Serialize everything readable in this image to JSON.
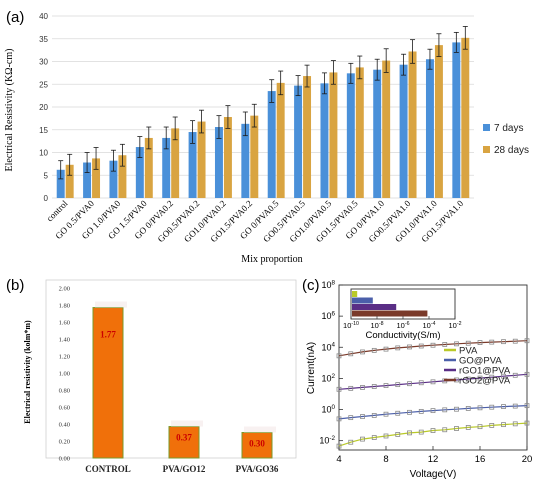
{
  "chart_data": [
    {
      "type": "bar",
      "panel_label": "(a)",
      "title": "",
      "xlabel": "Mix proportion",
      "ylabel": "Electrical Resistivity (KΩ-cm)",
      "ylim": [
        0,
        40
      ],
      "yticks": [
        0,
        5,
        10,
        15,
        20,
        25,
        30,
        35,
        40
      ],
      "grid": true,
      "legend_position": "right",
      "colors": {
        "7 days": "#4a90d9",
        "28 days": "#d9a441",
        "error": "#1a1a1a",
        "grid": "#d9d9d9"
      },
      "categories": [
        "control",
        "GO 0.5/PVA0",
        "GO 1.0/PVA0",
        "GO 1.5/PVA0",
        "GO 0/PVA0.2",
        "GO0.5/PVA0.2",
        "GO1.0/PVA0.2",
        "GO1.5/PVA0.2",
        "GO 0/PVA0.5",
        "GO0.5/PVA0.5",
        "GO1.0/PVA0.5",
        "GO1.5/PVA0.5",
        "GO 0/PVA1.0",
        "GO0.5/PVA1.0",
        "GO1.0/PVA1.0",
        "GO1.5/PVA1.0"
      ],
      "series": [
        {
          "name": "7 days",
          "values": [
            6.2,
            7.8,
            8.2,
            11.2,
            13.2,
            14.5,
            15.6,
            16.3,
            23.5,
            24.7,
            25.2,
            27.4,
            28.2,
            29.3,
            30.5,
            34.2
          ],
          "errors": [
            2.0,
            2.2,
            2.3,
            2.3,
            2.4,
            2.5,
            2.5,
            2.6,
            2.5,
            2.2,
            2.3,
            2.2,
            2.3,
            2.3,
            2.2,
            2.2
          ]
        },
        {
          "name": "28 days",
          "values": [
            7.3,
            8.7,
            9.4,
            13.2,
            15.3,
            16.8,
            17.8,
            18.1,
            25.3,
            26.8,
            27.6,
            28.7,
            30.2,
            32.2,
            33.6,
            35.2
          ],
          "errors": [
            2.3,
            2.4,
            2.4,
            2.4,
            2.5,
            2.5,
            2.5,
            2.5,
            2.6,
            2.4,
            2.6,
            2.5,
            2.6,
            2.6,
            2.5,
            2.5
          ]
        }
      ]
    },
    {
      "type": "bar",
      "panel_label": "(b)",
      "title": "",
      "xlabel": "",
      "ylabel": "Electrical resistivity (kolm*m)",
      "ylim": [
        0,
        2.0
      ],
      "yticks": [
        "0.00",
        "0.20",
        "0.40",
        "0.60",
        "0.80",
        "1.00",
        "1.20",
        "1.40",
        "1.60",
        "1.80",
        "2.00"
      ],
      "grid": false,
      "colors": {
        "bar": "#f0700a",
        "bar_edge": "#7a9a2a",
        "label": "#cc0000"
      },
      "categories": [
        "CONTROL",
        "PVA/GO12",
        "PVA/GO36"
      ],
      "values": [
        1.77,
        0.37,
        0.3
      ],
      "data_labels": [
        "1.77",
        "0.37",
        "0.30"
      ]
    },
    {
      "type": "line",
      "panel_label": "(c)",
      "title": "",
      "xlabel": "Voltage(V)",
      "ylabel": "Current(nA)",
      "xlim": [
        4,
        20
      ],
      "ylim_log10": [
        -2.6,
        8
      ],
      "y_scale": "log",
      "xticks": [
        4,
        8,
        12,
        16,
        20
      ],
      "yticks": [
        "10-2",
        "100",
        "102",
        "104",
        "106",
        "108"
      ],
      "legend_position": "center-right",
      "series": [
        {
          "name": "PVA",
          "color": "#b9c928",
          "marker": "square",
          "x": [
            4,
            5,
            6,
            7,
            8,
            9,
            10,
            11,
            12,
            13,
            14,
            15,
            16,
            17,
            18,
            19,
            20
          ],
          "log10_y": [
            -2.35,
            -2.1,
            -1.9,
            -1.8,
            -1.7,
            -1.6,
            -1.5,
            -1.45,
            -1.35,
            -1.3,
            -1.22,
            -1.15,
            -1.1,
            -1.02,
            -0.97,
            -0.92,
            -0.87
          ]
        },
        {
          "name": "GO@PVA",
          "color": "#4b5faa",
          "marker": "square",
          "x": [
            4,
            5,
            6,
            7,
            8,
            9,
            10,
            11,
            12,
            13,
            14,
            15,
            16,
            17,
            18,
            19,
            20
          ],
          "log10_y": [
            -0.6,
            -0.52,
            -0.45,
            -0.38,
            -0.3,
            -0.24,
            -0.18,
            -0.12,
            -0.07,
            -0.02,
            0.02,
            0.07,
            0.11,
            0.15,
            0.19,
            0.22,
            0.25
          ]
        },
        {
          "name": "rGO1@PVA",
          "color": "#5a2e86",
          "marker": "square",
          "x": [
            4,
            5,
            6,
            7,
            8,
            9,
            10,
            11,
            12,
            13,
            14,
            15,
            16,
            17,
            18,
            19,
            20
          ],
          "log10_y": [
            1.3,
            1.36,
            1.42,
            1.48,
            1.54,
            1.6,
            1.66,
            1.72,
            1.78,
            1.84,
            1.9,
            1.96,
            2.02,
            2.08,
            2.14,
            2.2,
            2.26
          ]
        },
        {
          "name": "rGO2@PVA",
          "color": "#7a3a2a",
          "marker": "square",
          "x": [
            4,
            5,
            6,
            7,
            8,
            9,
            10,
            11,
            12,
            13,
            14,
            15,
            16,
            17,
            18,
            19,
            20
          ],
          "log10_y": [
            3.45,
            3.58,
            3.7,
            3.8,
            3.88,
            3.96,
            4.02,
            4.08,
            4.13,
            4.18,
            4.22,
            4.26,
            4.3,
            4.33,
            4.36,
            4.39,
            4.42
          ]
        }
      ],
      "inset": {
        "type": "bar",
        "orientation": "horizontal",
        "xlabel": "Conductivity(S/m)",
        "x_scale": "log",
        "xlim_log10": [
          -10,
          -2
        ],
        "xticks": [
          "10-10",
          "10-8",
          "10-6",
          "10-4",
          "10-2"
        ],
        "bars": [
          {
            "name": "PVA",
            "color": "#b9c928",
            "log10_value": -9.6
          },
          {
            "name": "GO@PVA",
            "color": "#4b5faa",
            "log10_value": -8.4
          },
          {
            "name": "rGO1@PVA",
            "color": "#5a2e86",
            "log10_value": -6.6
          },
          {
            "name": "rGO2@PVA",
            "color": "#7a3a2a",
            "log10_value": -4.2
          }
        ]
      }
    }
  ]
}
